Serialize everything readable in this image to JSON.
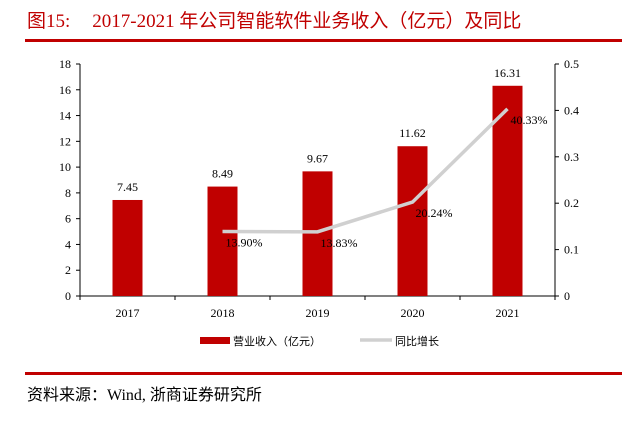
{
  "title": {
    "figure_no": "图15:",
    "text": "2017-2021 年公司智能软件业务收入（亿元）及同比"
  },
  "source": "资料来源：Wind, 浙商证券研究所",
  "chart_data": {
    "type": "bar+line",
    "categories": [
      "2017",
      "2018",
      "2019",
      "2020",
      "2021"
    ],
    "series": [
      {
        "name": "营业收入（亿元）",
        "type": "bar",
        "axis": "left",
        "color": "#c00000",
        "values": [
          7.45,
          8.49,
          9.67,
          11.62,
          16.31
        ],
        "labels": [
          "7.45",
          "8.49",
          "9.67",
          "11.62",
          "16.31"
        ]
      },
      {
        "name": "同比增长",
        "type": "line",
        "axis": "right",
        "color": "#d0d0d0",
        "values": [
          null,
          0.139,
          0.1383,
          0.2024,
          0.4033
        ],
        "labels": [
          "",
          "13.90%",
          "13.83%",
          "20.24%",
          "40.33%"
        ]
      }
    ],
    "left_axis": {
      "range": [
        0,
        18
      ],
      "ticks": [
        "0",
        "2",
        "4",
        "6",
        "8",
        "10",
        "12",
        "14",
        "16",
        "18"
      ]
    },
    "right_axis": {
      "range": [
        0,
        0.5
      ],
      "ticks": [
        "0",
        "0.1",
        "0.2",
        "0.3",
        "0.4",
        "0.5"
      ]
    },
    "grid": false,
    "legend": "bottom"
  }
}
